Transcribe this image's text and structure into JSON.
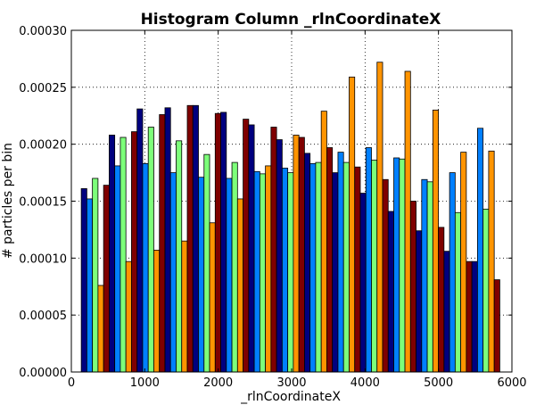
{
  "chart_data": {
    "type": "bar",
    "title": "Histogram Column _rlnCoordinateX",
    "xlabel": "_rlnCoordinateX",
    "ylabel": "# particles per bin",
    "xlim": [
      0,
      6000
    ],
    "ylim": [
      0,
      0.0003
    ],
    "xticks": [
      "0",
      "1000",
      "2000",
      "3000",
      "4000",
      "5000",
      "6000"
    ],
    "yticks": [
      "0.00000",
      "0.00005",
      "0.00010",
      "0.00015",
      "0.00020",
      "0.00025",
      "0.00030"
    ],
    "grid": true,
    "legend": "none",
    "bin_edges": [
      135,
      515,
      895,
      1275,
      1655,
      2035,
      2415,
      2795,
      3175,
      3555,
      3935,
      4315,
      4695,
      5075,
      5455
    ],
    "series": [
      {
        "color": "#00007f",
        "values": [
          0.000161,
          0.000208,
          0.000231,
          0.000232,
          0.000234,
          0.000228,
          0.000217,
          0.000204,
          0.000192,
          0.000175,
          0.000157,
          0.000141,
          0.000124,
          0.000106,
          9.7e-05
        ]
      },
      {
        "color": "#0080ff",
        "values": [
          0.000152,
          0.000181,
          0.000183,
          0.000175,
          0.000171,
          0.00017,
          0.000176,
          0.000179,
          0.000183,
          0.000193,
          0.000197,
          0.000188,
          0.000169,
          0.000175,
          0.000214
        ]
      },
      {
        "color": "#7dff7a",
        "values": [
          0.00017,
          0.000206,
          0.000215,
          0.000203,
          0.000191,
          0.000184,
          0.000174,
          0.000175,
          0.000184,
          0.000184,
          0.000186,
          0.000187,
          0.000167,
          0.00014,
          0.000143
        ]
      },
      {
        "color": "#ff9400",
        "values": [
          7.6e-05,
          9.7e-05,
          0.000107,
          0.000115,
          0.000131,
          0.000152,
          0.000181,
          0.000208,
          0.000229,
          0.000259,
          0.000272,
          0.000264,
          0.00023,
          0.000193,
          0.000194
        ]
      },
      {
        "color": "#7f0000",
        "values": [
          0.000164,
          0.000211,
          0.000226,
          0.000234,
          0.000227,
          0.000222,
          0.000215,
          0.000206,
          0.000197,
          0.00018,
          0.000169,
          0.00015,
          0.000127,
          9.7e-05,
          8.1e-05
        ]
      }
    ]
  }
}
